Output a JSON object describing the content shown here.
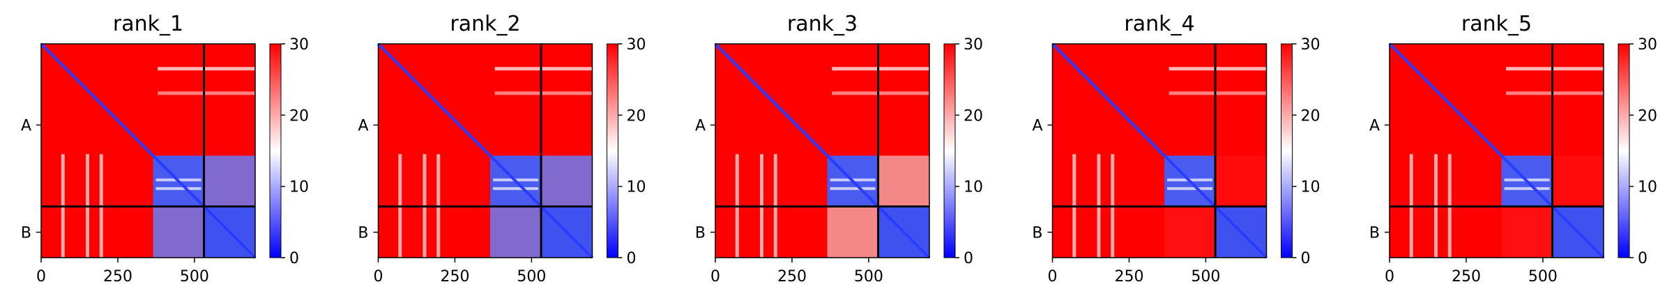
{
  "chart_data": {
    "type": "heatmap",
    "description_colormap": "bwr",
    "colors": {
      "low": "#0000ff",
      "mid": "#ffffff",
      "high": "#ff0000"
    },
    "color_range": [
      0,
      30
    ],
    "colorbar_ticks": [
      "0",
      "10",
      "20",
      "30"
    ],
    "x_ticks": [
      {
        "value": 0,
        "label": "0"
      },
      {
        "value": 250,
        "label": "250"
      },
      {
        "value": 500,
        "label": "500"
      }
    ],
    "x_range": [
      0,
      698
    ],
    "chain_boundary": 531,
    "chain_labels": [
      {
        "label": "A",
        "value": 265
      },
      {
        "label": "B",
        "value": 615
      }
    ],
    "domain_block_start": 365,
    "panels": [
      {
        "title": "rank_1",
        "interchain": "low"
      },
      {
        "title": "rank_2",
        "interchain": "low"
      },
      {
        "title": "rank_3",
        "interchain": "mixed"
      },
      {
        "title": "rank_4",
        "interchain": "high"
      },
      {
        "title": "rank_5",
        "interchain": "high"
      }
    ]
  }
}
